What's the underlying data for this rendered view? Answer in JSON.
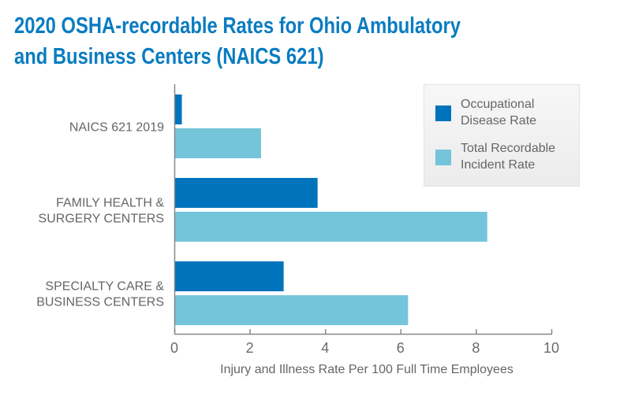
{
  "title": {
    "line1": "2020 OSHA-recordable Rates for Ohio Ambulatory",
    "line2": "and Business Centers (NAICS 621)"
  },
  "colors": {
    "title": "#0a7cc1",
    "occupational": "#0073bd",
    "total": "#74c4da",
    "axis": "#888888",
    "text": "#666666"
  },
  "chart_data": {
    "type": "bar",
    "orientation": "horizontal",
    "title": "2020 OSHA-recordable Rates for Ohio Ambulatory and Business Centers (NAICS 621)",
    "xlabel": "Injury and Illness Rate Per 100 Full Time Employees",
    "ylabel": "",
    "xlim": [
      0,
      10
    ],
    "xticks": [
      0,
      2,
      4,
      6,
      8,
      10
    ],
    "grid": false,
    "legend_position": "top-right",
    "categories": [
      [
        "NAICS 621 2019"
      ],
      [
        "FAMILY HEALTH &",
        "SURGERY CENTERS"
      ],
      [
        "SPECIALTY CARE &",
        "BUSINESS CENTERS"
      ]
    ],
    "series": [
      {
        "name": "Occupational Disease Rate",
        "legend_lines": [
          "Occupational",
          "Disease Rate"
        ],
        "color": "#0073bd",
        "values": [
          0.2,
          3.8,
          2.9
        ]
      },
      {
        "name": "Total Recordable Incident Rate",
        "legend_lines": [
          "Total Recordable",
          "Incident Rate"
        ],
        "color": "#74c4da",
        "values": [
          2.3,
          8.3,
          6.2
        ]
      }
    ]
  }
}
